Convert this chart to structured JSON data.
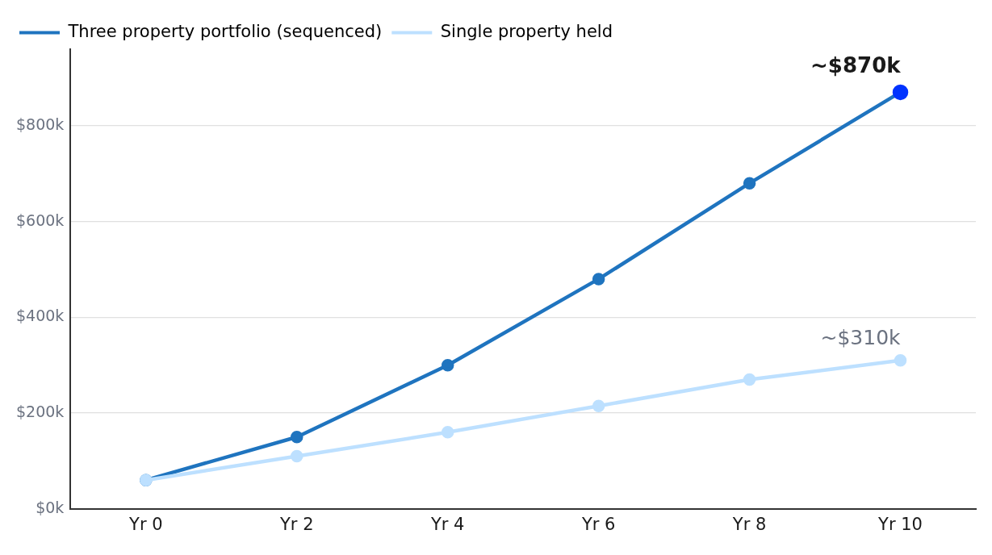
{
  "chart_data": {
    "type": "line",
    "categories": [
      "Yr 0",
      "Yr 2",
      "Yr 4",
      "Yr 6",
      "Yr 8",
      "Yr 10"
    ],
    "series": [
      {
        "name": "Three property portfolio (sequenced)",
        "color": "#1f74bf",
        "colors": [
          "#1f74bf",
          "#1f74bf",
          "#1f74bf",
          "#1f74bf",
          "#1f74bf",
          "#0033ff"
        ],
        "values": [
          60000,
          150000,
          300000,
          480000,
          680000,
          870000
        ]
      },
      {
        "name": "Single property held",
        "color": "#bde0ff",
        "values": [
          60000,
          110000,
          160000,
          215000,
          270000,
          310000
        ]
      }
    ],
    "ylim": [
      0,
      960000
    ],
    "yticks": [
      {
        "value": 0,
        "label": "$0k"
      },
      {
        "value": 200000,
        "label": "$200k"
      },
      {
        "value": 400000,
        "label": "$400k"
      },
      {
        "value": 600000,
        "label": "$600k"
      },
      {
        "value": 800000,
        "label": "$800k"
      }
    ],
    "annotations": [
      {
        "text": "~$870k",
        "x": "Yr 10",
        "y": 870000
      },
      {
        "text": "~$310k",
        "x": "Yr 10",
        "y": 310000
      }
    ],
    "grid": "y",
    "legend": "top left",
    "marker": "circle",
    "line_style": "solid"
  }
}
